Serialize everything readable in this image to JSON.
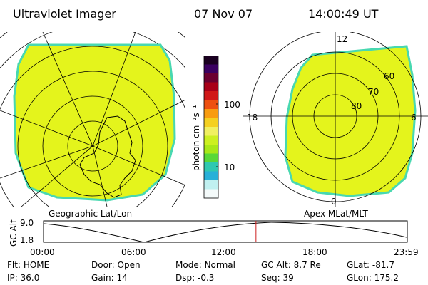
{
  "header": {
    "title": "Ultraviolet Imager",
    "date": "07 Nov 07",
    "time": "14:00:49 UT"
  },
  "colorbar": {
    "unit_label": "photon cm⁻²s⁻¹",
    "ticks": [
      "100",
      "10"
    ],
    "colors": [
      "#1a0020",
      "#3a0060",
      "#6a0030",
      "#a80018",
      "#d01818",
      "#ee5010",
      "#f89c10",
      "#f4d020",
      "#f0f060",
      "#ccf020",
      "#a8e818",
      "#58d838",
      "#30c8b0",
      "#28b0d8",
      "#c0f0f0",
      "#f4fafa"
    ]
  },
  "left_panel": {
    "label": "Geographic Lat/Lon"
  },
  "right_panel": {
    "label": "Apex MLat/MLT",
    "mlt_labels": {
      "top": "12",
      "left": "18",
      "right": "6",
      "bottom": "0"
    },
    "mlat_labels": [
      "60",
      "70",
      "80"
    ]
  },
  "timeline": {
    "ylabel": "GC Alt",
    "y_ticks": [
      "9.0",
      "1.8"
    ],
    "x_ticks": [
      "00:00",
      "06:00",
      "12:00",
      "18:00",
      "23:59"
    ],
    "current_time_fraction": 0.584
  },
  "status": {
    "row1": [
      {
        "key": "Flt:",
        "value": "HOME"
      },
      {
        "key": "Door:",
        "value": "Open"
      },
      {
        "key": "Mode:",
        "value": "Normal"
      },
      {
        "key": "GC Alt:",
        "value": "8.7 Re"
      },
      {
        "key": "GLat:",
        "value": "-81.7"
      }
    ],
    "row2": [
      {
        "key": "IP:",
        "value": "36.0"
      },
      {
        "key": "Gain:",
        "value": "14"
      },
      {
        "key": "Dsp:",
        "value": "-0.3"
      },
      {
        "key": "Seq:",
        "value": "39"
      },
      {
        "key": "GLon:",
        "value": "175.2"
      }
    ]
  },
  "colors": {
    "fill": "#e4f41c",
    "edge": "#48d8b0",
    "marker": "#cc2020"
  }
}
